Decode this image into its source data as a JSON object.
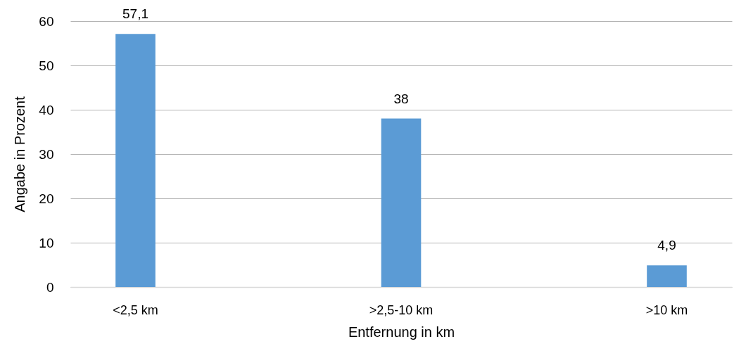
{
  "chart_data": {
    "type": "bar",
    "xlabel": "Entfernung in km",
    "ylabel": "Angabe in Prozent",
    "categories": [
      "<2,5 km",
      ">2,5-10 km",
      ">10 km"
    ],
    "values": [
      57.1,
      38,
      4.9
    ],
    "value_labels": [
      "57,1",
      "38",
      "4,9"
    ],
    "color": "#5b9bd5",
    "ylim": [
      0,
      60
    ],
    "yticks": [
      0,
      10,
      20,
      30,
      40,
      50,
      60
    ],
    "grid": "y"
  }
}
